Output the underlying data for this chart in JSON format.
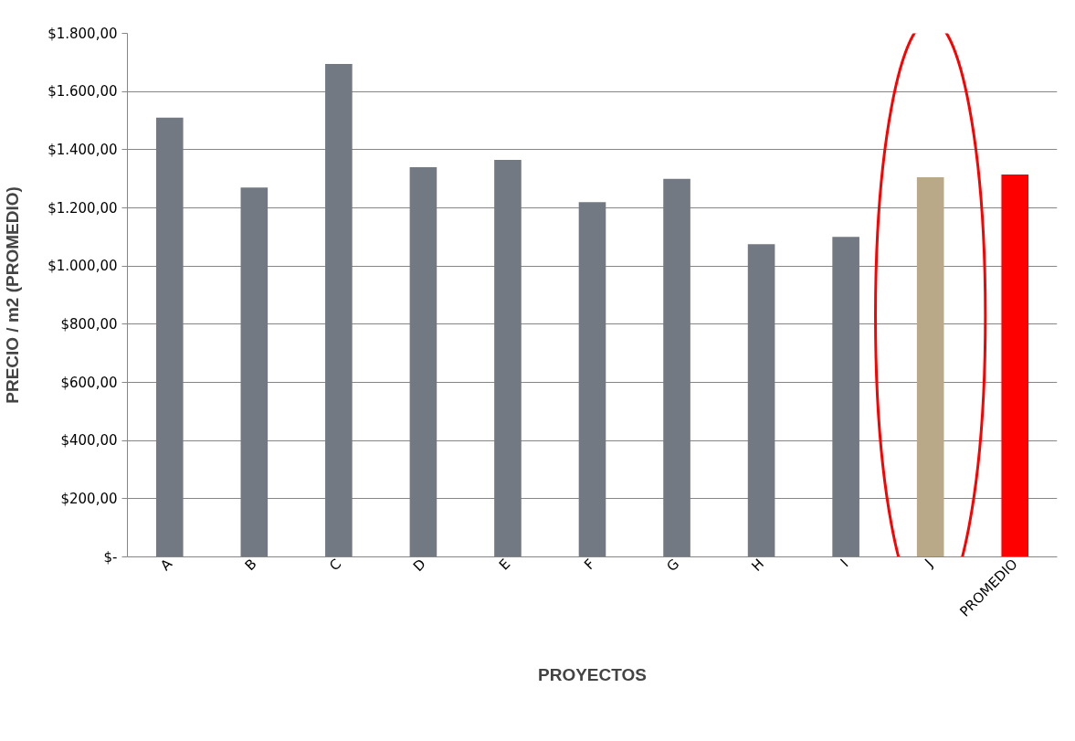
{
  "chart_data": {
    "type": "bar",
    "xlabel": "PROYECTOS",
    "ylabel": "PRECIO / m2 (PROMEDIO)",
    "categories": [
      "A",
      "B",
      "C",
      "D",
      "E",
      "F",
      "G",
      "H",
      "I",
      "J",
      "PROMEDIO"
    ],
    "values": [
      1510,
      1270,
      1695,
      1340,
      1365,
      1220,
      1300,
      1075,
      1100,
      1305,
      1315
    ],
    "colors": [
      "#737983",
      "#737983",
      "#737983",
      "#737983",
      "#737983",
      "#737983",
      "#737983",
      "#737983",
      "#737983",
      "#b9a988",
      "#ff0000"
    ],
    "ylim": [
      0,
      1800
    ],
    "yticks": [
      {
        "value": 0,
        "label": "$-"
      },
      {
        "value": 200,
        "label": "$200,00"
      },
      {
        "value": 400,
        "label": "$400,00"
      },
      {
        "value": 600,
        "label": "$600,00"
      },
      {
        "value": 800,
        "label": "$800,00"
      },
      {
        "value": 1000,
        "label": "$1.000,00"
      },
      {
        "value": 1200,
        "label": "$1.200,00"
      },
      {
        "value": 1400,
        "label": "$1.400,00"
      },
      {
        "value": 1600,
        "label": "$1.600,00"
      },
      {
        "value": 1800,
        "label": "$1.800,00"
      }
    ],
    "grid": "y"
  }
}
